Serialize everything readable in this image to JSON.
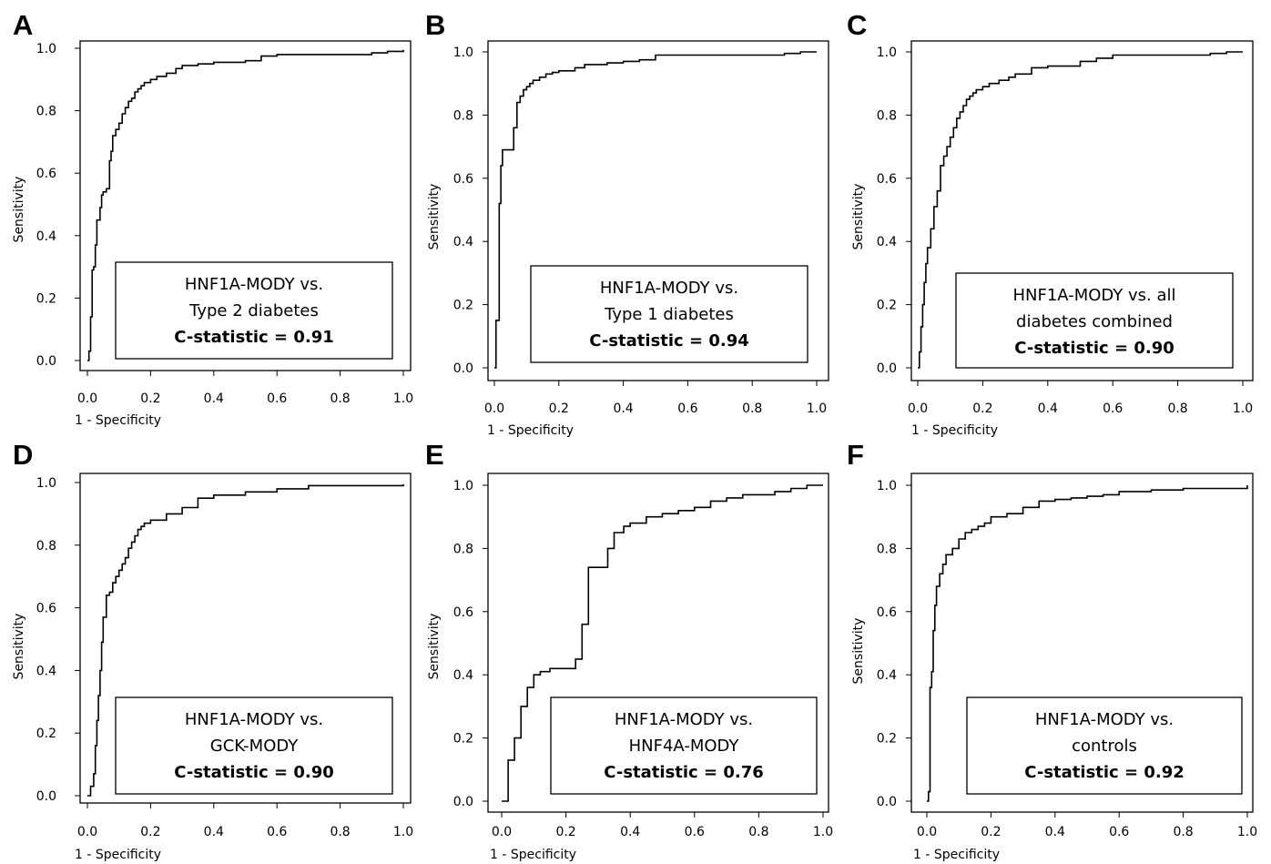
{
  "chart_data": [
    {
      "type": "line",
      "panel": "A",
      "xlabel": "1 - Specificity",
      "ylabel": "Sensitivity",
      "xlim": [
        0,
        1
      ],
      "ylim": [
        0,
        1
      ],
      "xticks": [
        "0.0",
        "0.2",
        "0.4",
        "0.6",
        "0.8",
        "1.0"
      ],
      "yticks": [
        "0.0",
        "0.2",
        "0.4",
        "0.6",
        "0.8",
        "1.0"
      ],
      "legend_lines": [
        "HNF1A-MODY vs.",
        "Type 2 diabetes"
      ],
      "statistic": "C-statistic = 0.91",
      "series": [
        {
          "x": [
            0,
            0.005,
            0.01,
            0.015,
            0.02,
            0.025,
            0.03,
            0.04,
            0.045,
            0.05,
            0.055,
            0.06,
            0.07,
            0.075,
            0.08,
            0.09,
            0.1,
            0.11,
            0.12,
            0.13,
            0.14,
            0.15,
            0.16,
            0.17,
            0.18,
            0.2,
            0.22,
            0.25,
            0.28,
            0.3,
            0.35,
            0.4,
            0.5,
            0.55,
            0.6,
            0.7,
            0.8,
            0.9,
            0.95,
            1.0
          ],
          "y": [
            0,
            0.03,
            0.14,
            0.29,
            0.3,
            0.37,
            0.45,
            0.49,
            0.53,
            0.54,
            0.54,
            0.55,
            0.64,
            0.67,
            0.72,
            0.74,
            0.76,
            0.79,
            0.81,
            0.83,
            0.84,
            0.86,
            0.87,
            0.88,
            0.89,
            0.9,
            0.91,
            0.92,
            0.935,
            0.945,
            0.95,
            0.955,
            0.96,
            0.975,
            0.98,
            0.98,
            0.98,
            0.985,
            0.99,
            0.995
          ]
        }
      ]
    },
    {
      "type": "line",
      "panel": "B",
      "xlabel": "1 - Specificity",
      "ylabel": "Sensitivity",
      "xlim": [
        0,
        1
      ],
      "ylim": [
        0,
        1
      ],
      "xticks": [
        "0.0",
        "0.2",
        "0.4",
        "0.6",
        "0.8",
        "1.0"
      ],
      "yticks": [
        "0.0",
        "0.2",
        "0.4",
        "0.6",
        "0.8",
        "1.0"
      ],
      "legend_lines": [
        "HNF1A-MODY vs.",
        "Type 1 diabetes"
      ],
      "statistic": "C-statistic = 0.94",
      "series": [
        {
          "x": [
            0,
            0.005,
            0.01,
            0.015,
            0.02,
            0.025,
            0.03,
            0.04,
            0.05,
            0.06,
            0.07,
            0.08,
            0.09,
            0.1,
            0.11,
            0.12,
            0.14,
            0.16,
            0.18,
            0.2,
            0.25,
            0.28,
            0.35,
            0.4,
            0.45,
            0.5,
            0.6,
            0.8,
            0.9,
            0.95,
            1.0
          ],
          "y": [
            0,
            0.15,
            0.15,
            0.52,
            0.64,
            0.69,
            0.69,
            0.69,
            0.69,
            0.76,
            0.84,
            0.86,
            0.88,
            0.89,
            0.9,
            0.91,
            0.92,
            0.93,
            0.935,
            0.94,
            0.95,
            0.96,
            0.965,
            0.97,
            0.975,
            0.99,
            0.99,
            0.99,
            0.995,
            1.0,
            1.0
          ]
        }
      ]
    },
    {
      "type": "line",
      "panel": "C",
      "xlabel": "1 - Specificity",
      "ylabel": "Sensitivity",
      "xlim": [
        0,
        1
      ],
      "ylim": [
        0,
        1
      ],
      "xticks": [
        "0.0",
        "0.2",
        "0.4",
        "0.6",
        "0.8",
        "1.0"
      ],
      "yticks": [
        "0.0",
        "0.2",
        "0.4",
        "0.6",
        "0.8",
        "1.0"
      ],
      "legend_lines": [
        "HNF1A-MODY vs. all",
        "diabetes combined"
      ],
      "statistic": "C-statistic = 0.90",
      "series": [
        {
          "x": [
            0,
            0.005,
            0.01,
            0.015,
            0.02,
            0.025,
            0.03,
            0.04,
            0.05,
            0.06,
            0.07,
            0.08,
            0.09,
            0.1,
            0.11,
            0.12,
            0.13,
            0.14,
            0.15,
            0.16,
            0.17,
            0.18,
            0.2,
            0.22,
            0.25,
            0.28,
            0.3,
            0.35,
            0.4,
            0.5,
            0.55,
            0.6,
            0.7,
            0.8,
            0.9,
            0.95,
            1.0
          ],
          "y": [
            0,
            0.05,
            0.13,
            0.2,
            0.27,
            0.33,
            0.38,
            0.44,
            0.51,
            0.56,
            0.64,
            0.67,
            0.7,
            0.73,
            0.76,
            0.79,
            0.81,
            0.83,
            0.85,
            0.86,
            0.87,
            0.88,
            0.89,
            0.9,
            0.91,
            0.92,
            0.93,
            0.95,
            0.955,
            0.97,
            0.98,
            0.99,
            0.99,
            0.99,
            0.995,
            1.0,
            1.0
          ]
        }
      ]
    },
    {
      "type": "line",
      "panel": "D",
      "xlabel": "1 - Specificity",
      "ylabel": "Sensitivity",
      "xlim": [
        0,
        1
      ],
      "ylim": [
        0,
        1
      ],
      "xticks": [
        "0.0",
        "0.2",
        "0.4",
        "0.6",
        "0.8",
        "1.0"
      ],
      "yticks": [
        "0.0",
        "0.2",
        "0.4",
        "0.6",
        "0.8",
        "1.0"
      ],
      "legend_lines": [
        "HNF1A-MODY vs.",
        "GCK-MODY"
      ],
      "statistic": "C-statistic = 0.90",
      "series": [
        {
          "x": [
            0,
            0.01,
            0.02,
            0.025,
            0.03,
            0.035,
            0.04,
            0.045,
            0.05,
            0.06,
            0.07,
            0.08,
            0.09,
            0.1,
            0.11,
            0.12,
            0.13,
            0.14,
            0.15,
            0.16,
            0.17,
            0.18,
            0.2,
            0.25,
            0.3,
            0.35,
            0.4,
            0.5,
            0.6,
            0.7,
            0.8,
            0.9,
            1.0
          ],
          "y": [
            0,
            0.03,
            0.07,
            0.16,
            0.24,
            0.32,
            0.4,
            0.49,
            0.57,
            0.64,
            0.65,
            0.68,
            0.7,
            0.72,
            0.74,
            0.76,
            0.79,
            0.81,
            0.83,
            0.85,
            0.86,
            0.87,
            0.88,
            0.9,
            0.92,
            0.95,
            0.96,
            0.97,
            0.98,
            0.99,
            0.99,
            0.99,
            0.995
          ]
        }
      ]
    },
    {
      "type": "line",
      "panel": "E",
      "xlabel": "1 - Specificity",
      "ylabel": "Sensitivity",
      "xlim": [
        0,
        1
      ],
      "ylim": [
        0,
        1
      ],
      "xticks": [
        "0.0",
        "0.2",
        "0.4",
        "0.6",
        "0.8",
        "1.0"
      ],
      "yticks": [
        "0.0",
        "0.2",
        "0.4",
        "0.6",
        "0.8",
        "1.0"
      ],
      "legend_lines": [
        "HNF1A-MODY vs.",
        "HNF4A-MODY"
      ],
      "statistic": "C-statistic = 0.76",
      "series": [
        {
          "x": [
            0,
            0.02,
            0.04,
            0.06,
            0.08,
            0.1,
            0.12,
            0.15,
            0.2,
            0.23,
            0.25,
            0.27,
            0.3,
            0.33,
            0.35,
            0.38,
            0.4,
            0.45,
            0.5,
            0.55,
            0.6,
            0.65,
            0.7,
            0.75,
            0.8,
            0.85,
            0.9,
            0.95,
            1.0
          ],
          "y": [
            0,
            0.13,
            0.2,
            0.3,
            0.36,
            0.4,
            0.41,
            0.42,
            0.42,
            0.45,
            0.56,
            0.74,
            0.74,
            0.8,
            0.85,
            0.87,
            0.88,
            0.9,
            0.91,
            0.92,
            0.93,
            0.95,
            0.96,
            0.97,
            0.97,
            0.98,
            0.99,
            1.0,
            1.0
          ]
        }
      ]
    },
    {
      "type": "line",
      "panel": "F",
      "xlabel": "1 - Specificity",
      "ylabel": "Sensitivity",
      "xlim": [
        0,
        1
      ],
      "ylim": [
        0,
        1
      ],
      "xticks": [
        "0.0",
        "0.2",
        "0.4",
        "0.6",
        "0.8",
        "1.0"
      ],
      "yticks": [
        "0.0",
        "0.2",
        "0.4",
        "0.6",
        "0.8",
        "1.0"
      ],
      "legend_lines": [
        "HNF1A-MODY vs.",
        "controls"
      ],
      "statistic": "C-statistic = 0.92",
      "series": [
        {
          "x": [
            0,
            0.005,
            0.01,
            0.015,
            0.02,
            0.025,
            0.03,
            0.04,
            0.05,
            0.06,
            0.08,
            0.1,
            0.12,
            0.14,
            0.16,
            0.18,
            0.2,
            0.25,
            0.3,
            0.35,
            0.4,
            0.45,
            0.5,
            0.55,
            0.6,
            0.7,
            0.8,
            0.9,
            1.0
          ],
          "y": [
            0,
            0.03,
            0.36,
            0.41,
            0.54,
            0.62,
            0.68,
            0.72,
            0.75,
            0.78,
            0.8,
            0.83,
            0.85,
            0.86,
            0.87,
            0.88,
            0.9,
            0.91,
            0.93,
            0.95,
            0.955,
            0.96,
            0.965,
            0.97,
            0.98,
            0.985,
            0.99,
            0.99,
            1.0
          ]
        }
      ]
    }
  ]
}
